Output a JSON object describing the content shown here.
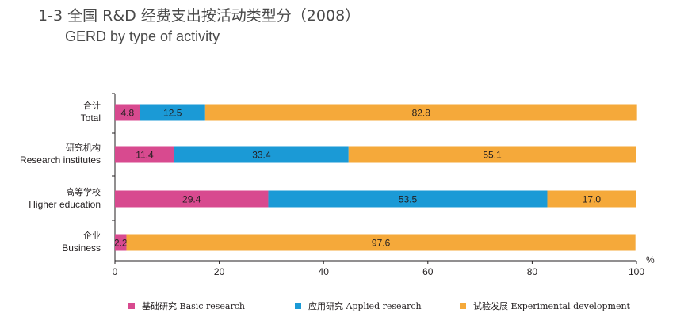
{
  "title": {
    "main": "1-3 全国 R&D 经费支出按活动类型分（2008）",
    "sub": "GERD by type of activity"
  },
  "chart_data": {
    "type": "bar",
    "orientation": "horizontal",
    "stacked": true,
    "categories": [
      {
        "cn": "合计",
        "en": "Total"
      },
      {
        "cn": "研究机构",
        "en": "Research institutes"
      },
      {
        "cn": "高等学校",
        "en": "Higher education"
      },
      {
        "cn": "企业",
        "en": "Business"
      }
    ],
    "series": [
      {
        "name": "基础研究 Basic research",
        "color": "#d84a8f",
        "values": [
          4.8,
          11.4,
          29.4,
          2.2
        ]
      },
      {
        "name": "应用研究 Applied research",
        "color": "#1b9ad6",
        "values": [
          12.5,
          33.4,
          53.5,
          0.0
        ]
      },
      {
        "name": "试验发展 Experimental development",
        "color": "#f5a93a",
        "values": [
          82.8,
          55.1,
          17.0,
          97.6
        ]
      }
    ],
    "data_labels": [
      [
        "4.8",
        "12.5",
        "82.8"
      ],
      [
        "11.4",
        "33.4",
        "55.1"
      ],
      [
        "29.4",
        "53.5",
        "17.0"
      ],
      [
        "2.2",
        "",
        "97.6"
      ]
    ],
    "xlim": [
      0,
      100
    ],
    "xticks": [
      0,
      20,
      40,
      60,
      80,
      100
    ],
    "xunit": "%",
    "grid": false,
    "legend_position": "bottom"
  }
}
